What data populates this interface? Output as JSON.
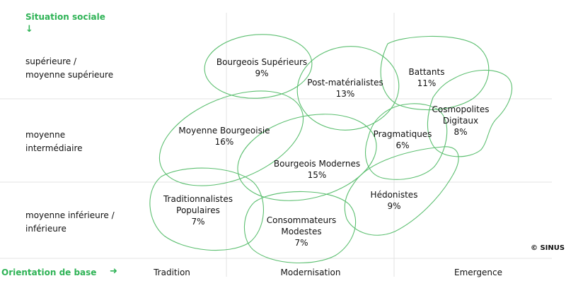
{
  "diagram": {
    "y_axis_title": "Situation sociale",
    "y_axis_arrow": "↓",
    "x_axis_title": "Orientation de base",
    "x_axis_arrow": "➜",
    "rows": [
      {
        "line1": "supérieure /",
        "line2": "moyenne supérieure"
      },
      {
        "line1": "moyenne",
        "line2": "intermédiaire"
      },
      {
        "line1": "moyenne inférieure /",
        "line2": "inférieure"
      }
    ],
    "columns": [
      "Tradition",
      "Modernisation",
      "Emergence"
    ],
    "copyright": "© SINUS",
    "accent_color": "#2fb356",
    "grid_color": "#e3e3e3",
    "milieus": [
      {
        "name_line1": "Bourgeois Supérieurs",
        "name_line2": "",
        "share": "9%"
      },
      {
        "name_line1": "Post-matérialistes",
        "name_line2": "",
        "share": "13%"
      },
      {
        "name_line1": "Battants",
        "name_line2": "",
        "share": "11%"
      },
      {
        "name_line1": "Cosmopolites",
        "name_line2": "Digitaux",
        "share": "8%"
      },
      {
        "name_line1": "Moyenne Bourgeoisie",
        "name_line2": "",
        "share": "16%"
      },
      {
        "name_line1": "Pragmatiques",
        "name_line2": "",
        "share": "6%"
      },
      {
        "name_line1": "Bourgeois Modernes",
        "name_line2": "",
        "share": "15%"
      },
      {
        "name_line1": "Traditionnalistes",
        "name_line2": "Populaires",
        "share": "7%"
      },
      {
        "name_line1": "Hédonistes",
        "name_line2": "",
        "share": "9%"
      },
      {
        "name_line1": "Consommateurs",
        "name_line2": "Modestes",
        "share": "7%"
      }
    ]
  }
}
